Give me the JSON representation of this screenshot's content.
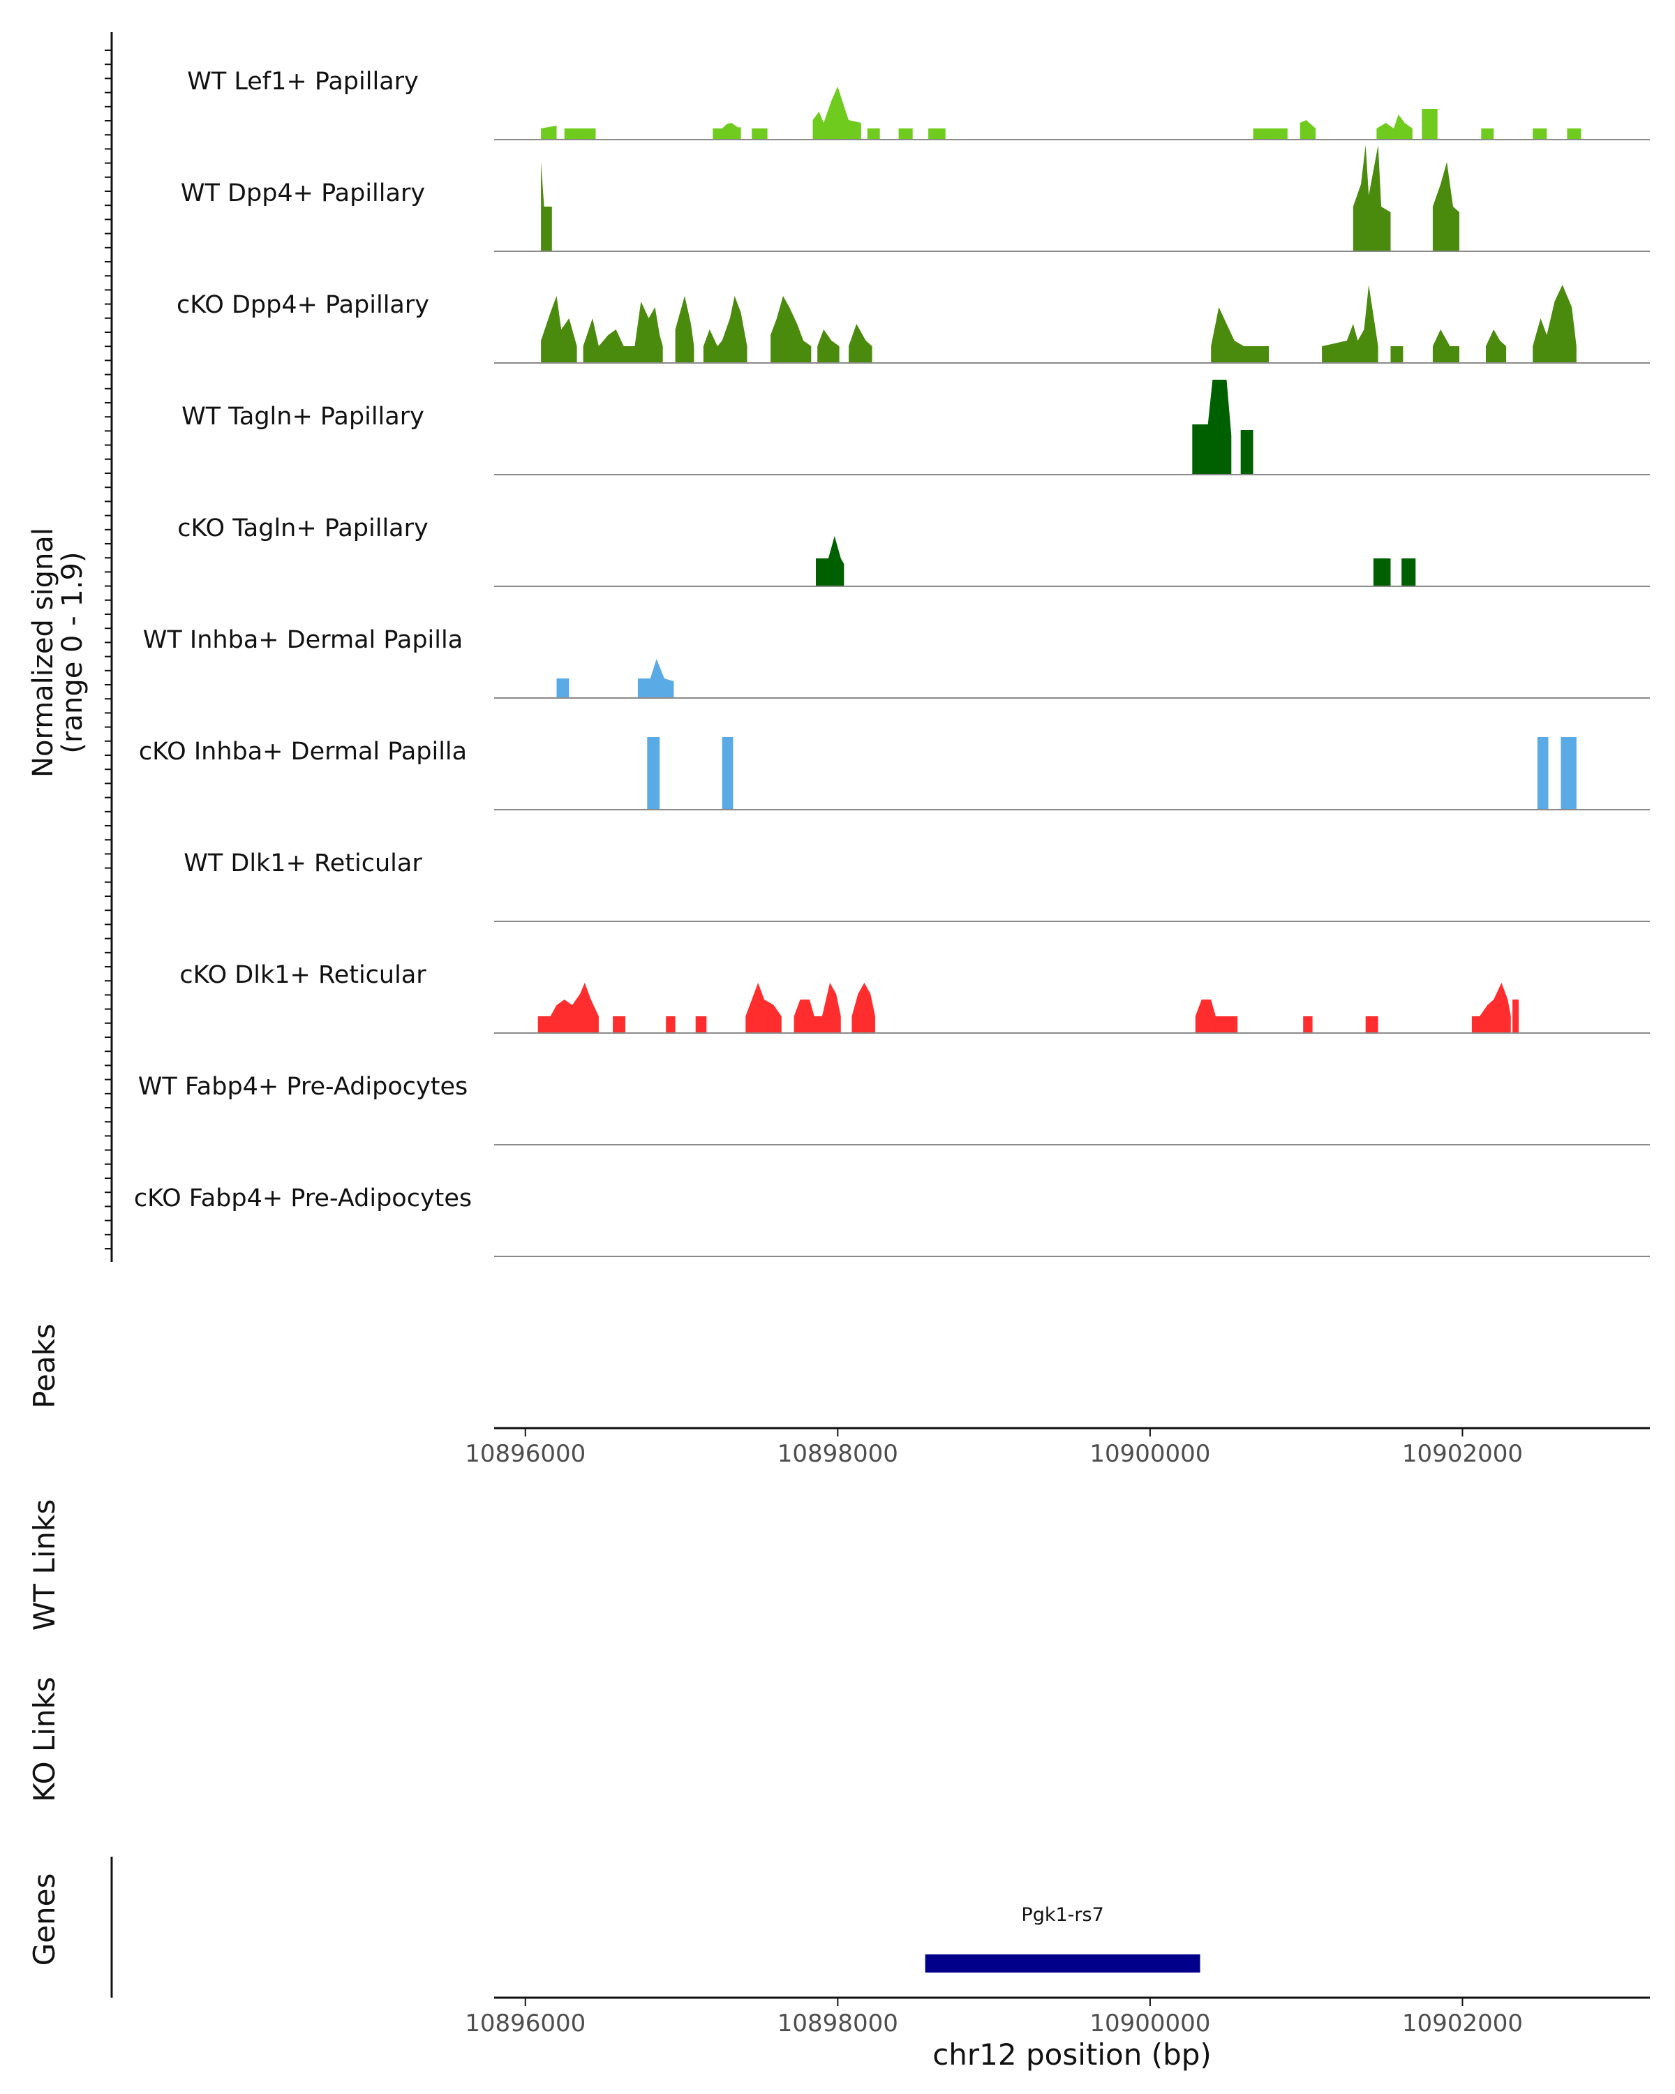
{
  "chart_data": {
    "type": "area",
    "title": "",
    "y_axis_label": "Normalized signal",
    "y_axis_range_label": "(range 0 - 1.9)",
    "ylim": [
      0,
      1.9
    ],
    "xlabel": "chr12 position (bp)",
    "x_range": [
      10895800,
      10903200
    ],
    "x_ticks": [
      10896000,
      10898000,
      10900000,
      10902000
    ],
    "x_tick_labels": [
      "10896000",
      "10898000",
      "10900000",
      "10902000"
    ],
    "tracks": [
      {
        "name": "WT Lef1+ Papillary",
        "color": "#6FCC1F",
        "segments": [
          [
            [
              10896100,
              0.2
            ],
            [
              10896200,
              0.25
            ]
          ],
          [
            [
              10896250,
              0.2
            ],
            [
              10896450,
              0.2
            ]
          ],
          [
            [
              10897200,
              0.2
            ],
            [
              10897260,
              0.2
            ],
            [
              10897290,
              0.28
            ],
            [
              10897320,
              0.3
            ],
            [
              10897360,
              0.22
            ],
            [
              10897380,
              0.22
            ]
          ],
          [
            [
              10897450,
              0.2
            ],
            [
              10897550,
              0.2
            ]
          ],
          [
            [
              10897840,
              0.35
            ],
            [
              10897880,
              0.5
            ],
            [
              10897910,
              0.3
            ],
            [
              10897960,
              0.7
            ],
            [
              10898000,
              0.95
            ],
            [
              10898040,
              0.6
            ],
            [
              10898070,
              0.35
            ],
            [
              10898150,
              0.3
            ]
          ],
          [
            [
              10898190,
              0.2
            ],
            [
              10898270,
              0.2
            ]
          ],
          [
            [
              10898390,
              0.2
            ],
            [
              10898480,
              0.2
            ]
          ],
          [
            [
              10898580,
              0.2
            ],
            [
              10898690,
              0.2
            ]
          ],
          [
            [
              10900660,
              0.2
            ],
            [
              10900880,
              0.2
            ]
          ],
          [
            [
              10900960,
              0.3
            ],
            [
              10901000,
              0.35
            ],
            [
              10901040,
              0.25
            ],
            [
              10901060,
              0.2
            ]
          ],
          [
            [
              10901450,
              0.2
            ],
            [
              10901510,
              0.3
            ],
            [
              10901560,
              0.2
            ],
            [
              10901590,
              0.45
            ],
            [
              10901630,
              0.3
            ],
            [
              10901680,
              0.2
            ]
          ],
          [
            [
              10901740,
              0.55
            ],
            [
              10901840,
              0.55
            ]
          ],
          [
            [
              10902120,
              0.2
            ],
            [
              10902200,
              0.2
            ]
          ],
          [
            [
              10902450,
              0.2
            ],
            [
              10902540,
              0.2
            ]
          ],
          [
            [
              10902670,
              0.2
            ],
            [
              10902760,
              0.2
            ]
          ]
        ]
      },
      {
        "name": "WT Dpp4+ Papillary",
        "color": "#4A8A0C",
        "segments": [
          [
            [
              10896100,
              1.6
            ],
            [
              10896120,
              0.8
            ],
            [
              10896170,
              0.8
            ]
          ],
          [
            [
              10901300,
              0.8
            ],
            [
              10901350,
              1.2
            ],
            [
              10901380,
              1.9
            ],
            [
              10901400,
              1.0
            ],
            [
              10901440,
              1.6
            ],
            [
              10901460,
              1.9
            ],
            [
              10901480,
              0.8
            ],
            [
              10901540,
              0.7
            ]
          ],
          [
            [
              10901810,
              0.8
            ],
            [
              10901860,
              1.2
            ],
            [
              10901900,
              1.6
            ],
            [
              10901940,
              0.8
            ],
            [
              10901980,
              0.7
            ]
          ]
        ]
      },
      {
        "name": "cKO Dpp4+ Papillary",
        "color": "#4A8A0C",
        "segments": [
          [
            [
              10896100,
              0.4
            ],
            [
              10896160,
              0.9
            ],
            [
              10896200,
              1.2
            ],
            [
              10896230,
              0.6
            ],
            [
              10896280,
              0.8
            ],
            [
              10896330,
              0.3
            ]
          ],
          [
            [
              10896370,
              0.3
            ],
            [
              10896430,
              0.8
            ],
            [
              10896470,
              0.3
            ],
            [
              10896530,
              0.5
            ],
            [
              10896580,
              0.6
            ],
            [
              10896630,
              0.3
            ],
            [
              10896700,
              0.3
            ],
            [
              10896740,
              1.1
            ],
            [
              10896790,
              0.8
            ],
            [
              10896830,
              1.0
            ],
            [
              10896860,
              0.5
            ],
            [
              10896880,
              0.3
            ]
          ],
          [
            [
              10896960,
              0.6
            ],
            [
              10897020,
              1.2
            ],
            [
              10897060,
              0.7
            ],
            [
              10897080,
              0.3
            ]
          ],
          [
            [
              10897140,
              0.3
            ],
            [
              10897180,
              0.6
            ],
            [
              10897230,
              0.3
            ],
            [
              10897260,
              0.4
            ],
            [
              10897310,
              0.8
            ],
            [
              10897340,
              1.2
            ],
            [
              10897380,
              0.9
            ],
            [
              10897420,
              0.3
            ]
          ],
          [
            [
              10897570,
              0.5
            ],
            [
              10897610,
              0.8
            ],
            [
              10897650,
              1.2
            ],
            [
              10897690,
              1.0
            ],
            [
              10897740,
              0.7
            ],
            [
              10897780,
              0.4
            ],
            [
              10897830,
              0.3
            ]
          ],
          [
            [
              10897870,
              0.3
            ],
            [
              10897910,
              0.6
            ],
            [
              10897960,
              0.4
            ],
            [
              10898010,
              0.3
            ]
          ],
          [
            [
              10898070,
              0.3
            ],
            [
              10898120,
              0.7
            ],
            [
              10898180,
              0.4
            ],
            [
              10898220,
              0.3
            ]
          ],
          [
            [
              10900390,
              0.3
            ],
            [
              10900440,
              1.0
            ],
            [
              10900490,
              0.7
            ],
            [
              10900540,
              0.4
            ],
            [
              10900600,
              0.3
            ],
            [
              10900760,
              0.3
            ]
          ],
          [
            [
              10901100,
              0.3
            ],
            [
              10901260,
              0.4
            ],
            [
              10901300,
              0.7
            ],
            [
              10901330,
              0.4
            ],
            [
              10901370,
              0.6
            ],
            [
              10901400,
              1.4
            ],
            [
              10901460,
              0.3
            ]
          ],
          [
            [
              10901540,
              0.3
            ],
            [
              10901620,
              0.3
            ]
          ],
          [
            [
              10901810,
              0.3
            ],
            [
              10901860,
              0.6
            ],
            [
              10901920,
              0.3
            ],
            [
              10901980,
              0.3
            ]
          ],
          [
            [
              10902150,
              0.3
            ],
            [
              10902200,
              0.6
            ],
            [
              10902240,
              0.4
            ],
            [
              10902280,
              0.3
            ]
          ],
          [
            [
              10902450,
              0.3
            ],
            [
              10902500,
              0.8
            ],
            [
              10902540,
              0.5
            ],
            [
              10902590,
              1.1
            ],
            [
              10902640,
              1.4
            ],
            [
              10902700,
              1.0
            ],
            [
              10902730,
              0.3
            ]
          ]
        ]
      },
      {
        "name": "WT Tagln+ Papillary",
        "color": "#006000",
        "segments": [
          [
            [
              10900270,
              0.9
            ],
            [
              10900370,
              0.9
            ],
            [
              10900400,
              1.7
            ],
            [
              10900490,
              1.7
            ],
            [
              10900520,
              0.7
            ]
          ],
          [
            [
              10900580,
              0.8
            ],
            [
              10900660,
              0.8
            ]
          ]
        ]
      },
      {
        "name": "cKO Tagln+ Papillary",
        "color": "#006000",
        "segments": [
          [
            [
              10897860,
              0.5
            ],
            [
              10897940,
              0.5
            ],
            [
              10897980,
              0.9
            ],
            [
              10898020,
              0.5
            ],
            [
              10898040,
              0.4
            ]
          ],
          [
            [
              10901430,
              0.5
            ],
            [
              10901540,
              0.5
            ]
          ],
          [
            [
              10901610,
              0.5
            ],
            [
              10901700,
              0.5
            ]
          ]
        ]
      },
      {
        "name": "WT Inhba+ Dermal Papilla",
        "color": "#5AAAE6",
        "segments": [
          [
            [
              10896200,
              0.35
            ],
            [
              10896280,
              0.35
            ]
          ],
          [
            [
              10896720,
              0.35
            ],
            [
              10896800,
              0.35
            ],
            [
              10896840,
              0.7
            ],
            [
              10896890,
              0.35
            ],
            [
              10896950,
              0.3
            ]
          ]
        ]
      },
      {
        "name": "cKO Inhba+ Dermal Papilla",
        "color": "#5AAAE6",
        "segments": [
          [
            [
              10896780,
              1.3
            ],
            [
              10896860,
              1.3
            ]
          ],
          [
            [
              10897260,
              1.3
            ],
            [
              10897330,
              1.3
            ]
          ],
          [
            [
              10902480,
              1.3
            ],
            [
              10902550,
              1.3
            ]
          ],
          [
            [
              10902630,
              1.3
            ],
            [
              10902730,
              1.3
            ]
          ]
        ]
      },
      {
        "name": "WT Dlk1+ Reticular",
        "color": "#FF2D2D",
        "segments": []
      },
      {
        "name": "cKO Dlk1+ Reticular",
        "color": "#FF2D2D",
        "segments": [
          [
            [
              10896080,
              0.3
            ],
            [
              10896160,
              0.3
            ],
            [
              10896200,
              0.5
            ],
            [
              10896250,
              0.6
            ],
            [
              10896300,
              0.5
            ],
            [
              10896350,
              0.7
            ],
            [
              10896380,
              0.9
            ],
            [
              10896420,
              0.6
            ],
            [
              10896470,
              0.3
            ]
          ],
          [
            [
              10896560,
              0.3
            ],
            [
              10896640,
              0.3
            ]
          ],
          [
            [
              10896900,
              0.3
            ],
            [
              10896960,
              0.3
            ]
          ],
          [
            [
              10897090,
              0.3
            ],
            [
              10897160,
              0.3
            ]
          ],
          [
            [
              10897410,
              0.3
            ],
            [
              10897450,
              0.6
            ],
            [
              10897490,
              0.9
            ],
            [
              10897530,
              0.6
            ],
            [
              10897590,
              0.5
            ],
            [
              10897640,
              0.3
            ]
          ],
          [
            [
              10897720,
              0.3
            ],
            [
              10897760,
              0.6
            ],
            [
              10897820,
              0.6
            ],
            [
              10897850,
              0.3
            ],
            [
              10897900,
              0.3
            ],
            [
              10897950,
              0.9
            ],
            [
              10897990,
              0.7
            ],
            [
              10898020,
              0.3
            ]
          ],
          [
            [
              10898090,
              0.3
            ],
            [
              10898130,
              0.7
            ],
            [
              10898170,
              0.9
            ],
            [
              10898210,
              0.7
            ],
            [
              10898240,
              0.3
            ]
          ],
          [
            [
              10900290,
              0.3
            ],
            [
              10900330,
              0.6
            ],
            [
              10900390,
              0.6
            ],
            [
              10900420,
              0.3
            ],
            [
              10900560,
              0.3
            ]
          ],
          [
            [
              10900980,
              0.3
            ],
            [
              10901040,
              0.3
            ]
          ],
          [
            [
              10901380,
              0.3
            ],
            [
              10901460,
              0.3
            ]
          ],
          [
            [
              10902060,
              0.3
            ],
            [
              10902110,
              0.3
            ],
            [
              10902160,
              0.5
            ],
            [
              10902200,
              0.6
            ],
            [
              10902250,
              0.9
            ],
            [
              10902290,
              0.6
            ],
            [
              10902310,
              0.3
            ]
          ],
          [
            [
              10902320,
              0.6
            ],
            [
              10902360,
              0.6
            ]
          ]
        ]
      },
      {
        "name": "WT Fabp4+ Pre-Adipocytes",
        "color": "#8B4513",
        "segments": []
      },
      {
        "name": "cKO Fabp4+ Pre-Adipocytes",
        "color": "#8B4513",
        "segments": []
      }
    ],
    "panels": [
      {
        "name": "Peaks"
      },
      {
        "name": "WT Links"
      },
      {
        "name": "KO Links"
      },
      {
        "name": "Genes"
      }
    ],
    "genes": [
      {
        "name": "Pgk1-rs7",
        "start": 10898560,
        "end": 10900320,
        "color": "#00008B"
      }
    ]
  }
}
